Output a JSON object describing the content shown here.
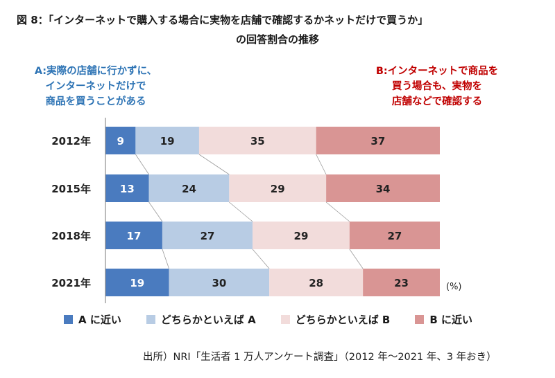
{
  "title_line1": "図 8：「インターネットで購入する場合に実物を店舗で確認するかネットだけで買うか」",
  "title_line2": "の回答割合の推移",
  "note_a": [
    "A:実際の店舗に行かずに、",
    "インターネットだけで",
    "商品を買うことがある"
  ],
  "note_b": [
    "B:インターネットで商品を",
    "買う場合も、実物を",
    "店舗などで確認する"
  ],
  "unit_label": "(%)",
  "source": "出所）NRI「生活者 1 万人アンケート調査」（2012 年～2021 年、3 年おき）",
  "colors": {
    "note_a": "#2e74b5",
    "note_b": "#c00000",
    "series": [
      "#4a7bbf",
      "#b8cce4",
      "#f2dcdb",
      "#d99594"
    ]
  },
  "chart_data": {
    "type": "bar",
    "orientation": "horizontal",
    "stacked": true,
    "categories": [
      "2012年",
      "2015年",
      "2018年",
      "2021年"
    ],
    "series": [
      {
        "name": "A に近い",
        "values": [
          9,
          13,
          17,
          19
        ]
      },
      {
        "name": "どちらかといえば A",
        "values": [
          19,
          24,
          27,
          30
        ]
      },
      {
        "name": "どちらかといえば B",
        "values": [
          35,
          29,
          29,
          28
        ]
      },
      {
        "name": "B に近い",
        "values": [
          37,
          34,
          27,
          23
        ]
      }
    ],
    "xlim": [
      0,
      100
    ],
    "grid": false,
    "legend_position": "bottom",
    "connector_lines": true
  }
}
